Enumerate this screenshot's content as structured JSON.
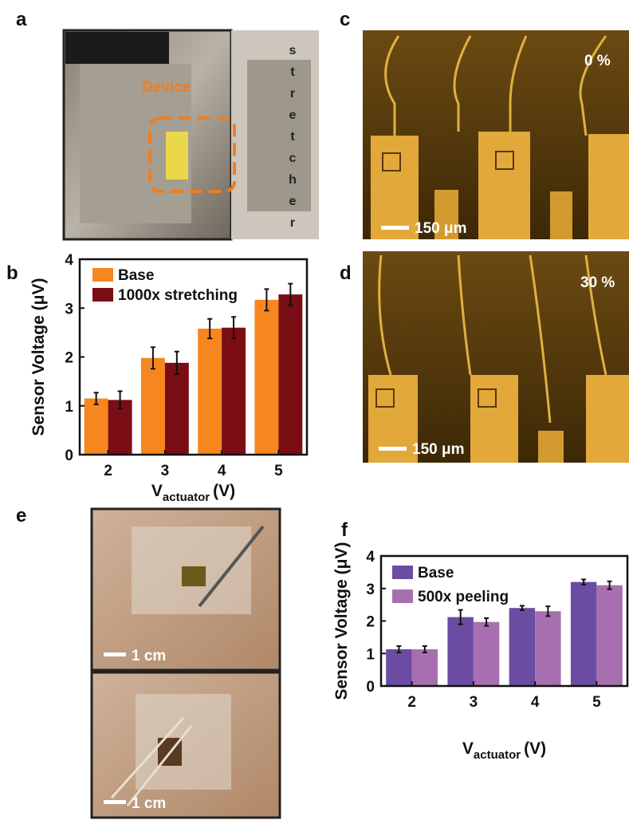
{
  "panels": {
    "a": {
      "label": "a",
      "device": "Device",
      "stretcher": [
        "s",
        "t",
        "r",
        "e",
        "t",
        "c",
        "h",
        "e",
        "r"
      ]
    },
    "b": {
      "label": "b"
    },
    "c": {
      "label": "c",
      "strain": "0 %",
      "scale": "150 μm"
    },
    "d": {
      "label": "d",
      "strain": "30 %",
      "scale": "150 μm"
    },
    "e": {
      "label": "e",
      "scale_top": "1 cm",
      "scale_bottom": "1 cm"
    },
    "f": {
      "label": "f"
    }
  },
  "chart_data": [
    {
      "type": "bar",
      "ylabel": "Sensor Voltage (μV)",
      "xlabel": {
        "main": "V",
        "sub": "actuator",
        "unit": "(V)"
      },
      "categories": [
        "2",
        "3",
        "4",
        "5"
      ],
      "ylim": [
        0,
        4
      ],
      "yticks": [
        0,
        1,
        2,
        3,
        4
      ],
      "series": [
        {
          "name": "Base",
          "color": "#f7861e",
          "values": [
            1.15,
            1.98,
            2.58,
            3.17
          ],
          "errors": [
            0.12,
            0.22,
            0.2,
            0.22
          ]
        },
        {
          "name": "1000x stretching",
          "color": "#7b0d14",
          "values": [
            1.12,
            1.88,
            2.6,
            3.28
          ],
          "errors": [
            0.18,
            0.23,
            0.22,
            0.22
          ]
        }
      ]
    },
    {
      "type": "bar",
      "ylabel": "Sensor Voltage (μV)",
      "xlabel": {
        "main": "V",
        "sub": "actuator",
        "unit": "(V)"
      },
      "categories": [
        "2",
        "3",
        "4",
        "5"
      ],
      "ylim": [
        0,
        4
      ],
      "yticks": [
        0,
        1,
        2,
        3,
        4
      ],
      "series": [
        {
          "name": "Base",
          "color": "#6a4ca3",
          "values": [
            1.13,
            2.12,
            2.4,
            3.2
          ],
          "errors": [
            0.1,
            0.22,
            0.07,
            0.08
          ]
        },
        {
          "name": "500x peeling",
          "color": "#a86fb0",
          "values": [
            1.13,
            1.97,
            2.3,
            3.1
          ],
          "errors": [
            0.1,
            0.12,
            0.15,
            0.12
          ]
        }
      ]
    }
  ]
}
